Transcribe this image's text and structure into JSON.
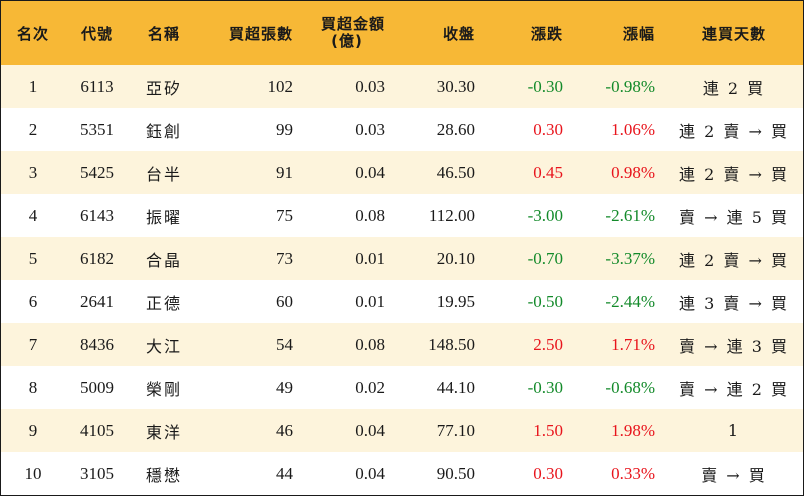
{
  "headers": {
    "rank": "名次",
    "code": "代號",
    "name": "名稱",
    "lots": "買超張數",
    "amount_line1": "買超金額",
    "amount_line2": "(億)",
    "close": "收盤",
    "change": "漲跌",
    "pct": "漲幅",
    "streak": "連買天數"
  },
  "colors": {
    "header_bg": "#f7b836",
    "row_alt": "#fdf4dc",
    "up": "#e8141c",
    "down": "#138a2a"
  },
  "rows": [
    {
      "rank": "1",
      "code": "6113",
      "name": "亞矽",
      "lots": "102",
      "amount": "0.03",
      "close": "30.30",
      "change": "-0.30",
      "pct": "-0.98%",
      "streak": "連 2 買",
      "dir": "down"
    },
    {
      "rank": "2",
      "code": "5351",
      "name": "鈺創",
      "lots": "99",
      "amount": "0.03",
      "close": "28.60",
      "change": "0.30",
      "pct": "1.06%",
      "streak": "連 2 賣 → 買",
      "dir": "up"
    },
    {
      "rank": "3",
      "code": "5425",
      "name": "台半",
      "lots": "91",
      "amount": "0.04",
      "close": "46.50",
      "change": "0.45",
      "pct": "0.98%",
      "streak": "連 2 賣 → 買",
      "dir": "up"
    },
    {
      "rank": "4",
      "code": "6143",
      "name": "振曜",
      "lots": "75",
      "amount": "0.08",
      "close": "112.00",
      "change": "-3.00",
      "pct": "-2.61%",
      "streak": "賣 → 連 5 買",
      "dir": "down"
    },
    {
      "rank": "5",
      "code": "6182",
      "name": "合晶",
      "lots": "73",
      "amount": "0.01",
      "close": "20.10",
      "change": "-0.70",
      "pct": "-3.37%",
      "streak": "連 2 賣 → 買",
      "dir": "down"
    },
    {
      "rank": "6",
      "code": "2641",
      "name": "正德",
      "lots": "60",
      "amount": "0.01",
      "close": "19.95",
      "change": "-0.50",
      "pct": "-2.44%",
      "streak": "連 3 賣 → 買",
      "dir": "down"
    },
    {
      "rank": "7",
      "code": "8436",
      "name": "大江",
      "lots": "54",
      "amount": "0.08",
      "close": "148.50",
      "change": "2.50",
      "pct": "1.71%",
      "streak": "賣 → 連 3 買",
      "dir": "up"
    },
    {
      "rank": "8",
      "code": "5009",
      "name": "榮剛",
      "lots": "49",
      "amount": "0.02",
      "close": "44.10",
      "change": "-0.30",
      "pct": "-0.68%",
      "streak": "賣 → 連 2 買",
      "dir": "down"
    },
    {
      "rank": "9",
      "code": "4105",
      "name": "東洋",
      "lots": "46",
      "amount": "0.04",
      "close": "77.10",
      "change": "1.50",
      "pct": "1.98%",
      "streak": "1",
      "dir": "up"
    },
    {
      "rank": "10",
      "code": "3105",
      "name": "穩懋",
      "lots": "44",
      "amount": "0.04",
      "close": "90.50",
      "change": "0.30",
      "pct": "0.33%",
      "streak": "賣 → 買",
      "dir": "up"
    }
  ]
}
